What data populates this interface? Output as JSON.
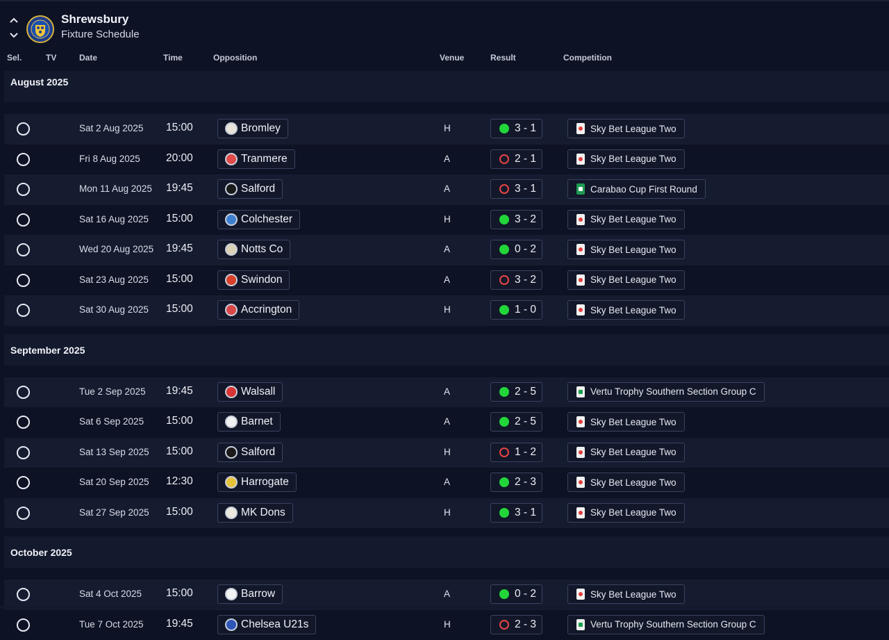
{
  "header": {
    "team": "Shrewsbury",
    "subtitle": "Fixture Schedule"
  },
  "columns": {
    "sel": "Sel.",
    "tv": "TV",
    "date": "Date",
    "time": "Time",
    "opposition": "Opposition",
    "venue": "Venue",
    "result": "Result",
    "competition": "Competition"
  },
  "colors": {
    "win": "#22d63a",
    "loss": "#e84545",
    "background": "#0d1224"
  },
  "months": [
    {
      "label": "August 2025",
      "fixtures": [
        {
          "date": "Sat 2 Aug 2025",
          "time": "15:00",
          "opponent": "Bromley",
          "crest_color": "#e9e4d8",
          "venue": "H",
          "outcome": "win",
          "score": "3 - 1",
          "competition": "Sky Bet League Two",
          "comp_type": "league"
        },
        {
          "date": "Fri 8 Aug 2025",
          "time": "20:00",
          "opponent": "Tranmere",
          "crest_color": "#e24a4a",
          "venue": "A",
          "outcome": "loss",
          "score": "2 - 1",
          "competition": "Sky Bet League Two",
          "comp_type": "league"
        },
        {
          "date": "Mon 11 Aug 2025",
          "time": "19:45",
          "opponent": "Salford",
          "crest_color": "#1a1a1a",
          "venue": "A",
          "outcome": "loss",
          "score": "3 - 1",
          "competition": "Carabao Cup First Round",
          "comp_type": "cup"
        },
        {
          "date": "Sat 16 Aug 2025",
          "time": "15:00",
          "opponent": "Colchester",
          "crest_color": "#3f7fd0",
          "venue": "H",
          "outcome": "win",
          "score": "3 - 2",
          "competition": "Sky Bet League Two",
          "comp_type": "league"
        },
        {
          "date": "Wed 20 Aug 2025",
          "time": "19:45",
          "opponent": "Notts Co",
          "crest_color": "#d9d2b5",
          "venue": "A",
          "outcome": "win",
          "score": "0 - 2",
          "competition": "Sky Bet League Two",
          "comp_type": "league"
        },
        {
          "date": "Sat 23 Aug 2025",
          "time": "15:00",
          "opponent": "Swindon",
          "crest_color": "#d8402a",
          "venue": "A",
          "outcome": "loss",
          "score": "3 - 2",
          "competition": "Sky Bet League Two",
          "comp_type": "league"
        },
        {
          "date": "Sat 30 Aug 2025",
          "time": "15:00",
          "opponent": "Accrington",
          "crest_color": "#d84848",
          "venue": "H",
          "outcome": "win",
          "score": "1 - 0",
          "competition": "Sky Bet League Two",
          "comp_type": "league"
        }
      ]
    },
    {
      "label": "September 2025",
      "fixtures": [
        {
          "date": "Tue 2 Sep 2025",
          "time": "19:45",
          "opponent": "Walsall",
          "crest_color": "#d93434",
          "venue": "A",
          "outcome": "win",
          "score": "2 - 5",
          "competition": "Vertu Trophy Southern Section Group C",
          "comp_type": "trophy"
        },
        {
          "date": "Sat 6 Sep 2025",
          "time": "15:00",
          "opponent": "Barnet",
          "crest_color": "#f1f1f1",
          "venue": "A",
          "outcome": "win",
          "score": "2 - 5",
          "competition": "Sky Bet League Two",
          "comp_type": "league"
        },
        {
          "date": "Sat 13 Sep 2025",
          "time": "15:00",
          "opponent": "Salford",
          "crest_color": "#1a1a1a",
          "venue": "H",
          "outcome": "loss",
          "score": "1 - 2",
          "competition": "Sky Bet League Two",
          "comp_type": "league"
        },
        {
          "date": "Sat 20 Sep 2025",
          "time": "12:30",
          "opponent": "Harrogate",
          "crest_color": "#e5c23a",
          "venue": "A",
          "outcome": "win",
          "score": "2 - 3",
          "competition": "Sky Bet League Two",
          "comp_type": "league"
        },
        {
          "date": "Sat 27 Sep 2025",
          "time": "15:00",
          "opponent": "MK Dons",
          "crest_color": "#ece9df",
          "venue": "H",
          "outcome": "win",
          "score": "3 - 1",
          "competition": "Sky Bet League Two",
          "comp_type": "league"
        }
      ]
    },
    {
      "label": "October 2025",
      "fixtures": [
        {
          "date": "Sat 4 Oct 2025",
          "time": "15:00",
          "opponent": "Barrow",
          "crest_color": "#f4f4f4",
          "venue": "A",
          "outcome": "win",
          "score": "0 - 2",
          "competition": "Sky Bet League Two",
          "comp_type": "league"
        },
        {
          "date": "Tue 7 Oct 2025",
          "time": "19:45",
          "opponent": "Chelsea U21s",
          "crest_color": "#2e55b8",
          "venue": "H",
          "outcome": "loss",
          "score": "2 - 3",
          "competition": "Vertu Trophy Southern Section Group C",
          "comp_type": "trophy"
        }
      ]
    }
  ]
}
